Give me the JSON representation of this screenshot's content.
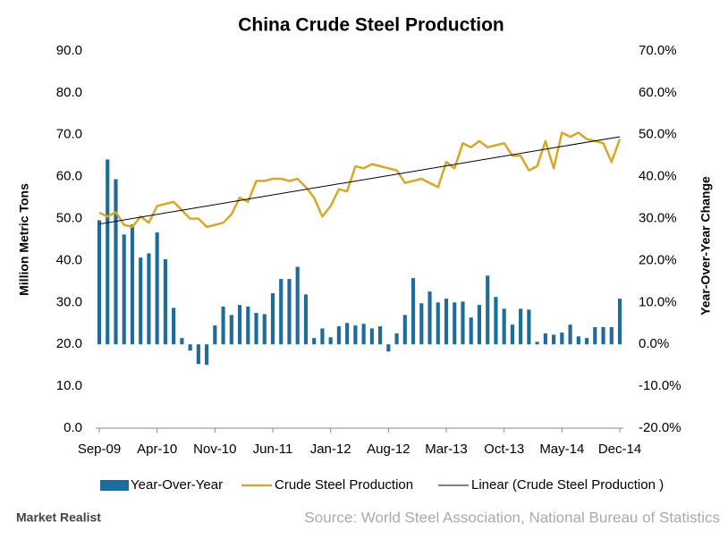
{
  "chart_data": {
    "type": "bar_line",
    "title": "China Crude Steel Production",
    "y_label": "Million Metric Tons",
    "y2_label": "Year-Over-Year Change",
    "source": "Source: World Steel Association, National Bureau of Statistics",
    "logo": "Market Realist",
    "categories": [
      "Sep-09",
      null,
      null,
      null,
      null,
      null,
      null,
      "Apr-10",
      null,
      null,
      null,
      null,
      null,
      null,
      "Nov-10",
      null,
      null,
      null,
      null,
      null,
      null,
      "Jun-11",
      null,
      null,
      null,
      null,
      null,
      null,
      "Jan-12",
      null,
      null,
      null,
      null,
      null,
      null,
      "Aug-12",
      null,
      null,
      null,
      null,
      null,
      null,
      "Mar-13",
      null,
      null,
      null,
      null,
      null,
      null,
      "Oct-13",
      null,
      null,
      null,
      null,
      null,
      null,
      "May-14",
      null,
      null,
      null,
      null,
      null,
      null,
      "Dec-14"
    ],
    "series": [
      {
        "name": "Year-Over-Year",
        "color": "#1f6b99",
        "kind": "bar",
        "axis": "y2",
        "values": [
          29.6,
          44.1,
          39.4,
          26.2,
          28.6,
          20.7,
          21.7,
          26.7,
          20.3,
          8.7,
          1.5,
          -1.5,
          -4.7,
          -4.9,
          4.5,
          9.0,
          7.0,
          9.4,
          9.0,
          7.5,
          7.2,
          12.2,
          15.6,
          15.6,
          18.5,
          11.9,
          1.5,
          3.8,
          1.7,
          4.3,
          5.1,
          4.5,
          4.9,
          3.8,
          4.3,
          -1.7,
          2.6,
          7.0,
          15.8,
          9.8,
          12.6,
          10.0,
          10.9,
          10.0,
          10.2,
          6.4,
          9.4,
          16.4,
          11.3,
          8.5,
          4.7,
          8.5,
          8.3,
          0.6,
          2.6,
          2.3,
          2.8,
          4.7,
          1.9,
          1.5,
          4.1,
          4.1,
          4.1,
          10.9
        ]
      },
      {
        "name": "Crude Steel Production",
        "color": "#d4a92a",
        "kind": "line",
        "values": [
          51.4,
          50.5,
          51.5,
          48.5,
          48,
          50.5,
          49,
          53,
          53.5,
          54,
          52,
          50,
          50,
          48,
          48.5,
          49,
          51,
          55,
          54,
          59,
          59,
          59.5,
          59.5,
          59,
          59.5,
          57.5,
          55,
          50.5,
          53,
          57,
          56.5,
          62.5,
          62,
          63,
          62.5,
          62,
          61.5,
          58.5,
          59,
          59.5,
          58.5,
          57.5,
          63.5,
          62,
          68,
          67,
          68.5,
          67,
          67.5,
          68,
          65,
          65,
          61.5,
          62.5,
          68.5,
          62,
          70.5,
          69.5,
          70.5,
          69,
          68.5,
          68,
          63.5,
          69
        ]
      }
    ],
    "trendline": {
      "name": "Linear (Crude Steel Production )",
      "color": "#000000",
      "of_series": 1
    },
    "ylim": [
      0,
      90
    ],
    "yticks": [
      {
        "value": 0,
        "label": "0.0"
      },
      {
        "value": 10,
        "label": "10.0"
      },
      {
        "value": 20,
        "label": "20.0"
      },
      {
        "value": 30,
        "label": "30.0"
      },
      {
        "value": 40,
        "label": "40.0"
      },
      {
        "value": 50,
        "label": "50.0"
      },
      {
        "value": 60,
        "label": "60.0"
      },
      {
        "value": 70,
        "label": "70.0"
      },
      {
        "value": 80,
        "label": "80.0"
      },
      {
        "value": 90,
        "label": "90.0"
      }
    ],
    "y2lim": [
      -20,
      70
    ],
    "y2ticks": [
      {
        "value": -20,
        "label": "-20.0%"
      },
      {
        "value": -10,
        "label": "-10.0%"
      },
      {
        "value": 0,
        "label": "0.0%"
      },
      {
        "value": 10,
        "label": "10.0%"
      },
      {
        "value": 20,
        "label": "20.0%"
      },
      {
        "value": 30,
        "label": "30.0%"
      },
      {
        "value": 40,
        "label": "40.0%"
      },
      {
        "value": 50,
        "label": "50.0%"
      },
      {
        "value": 60,
        "label": "60.0%"
      },
      {
        "value": 70,
        "label": "70.0%"
      }
    ],
    "grid": false
  }
}
